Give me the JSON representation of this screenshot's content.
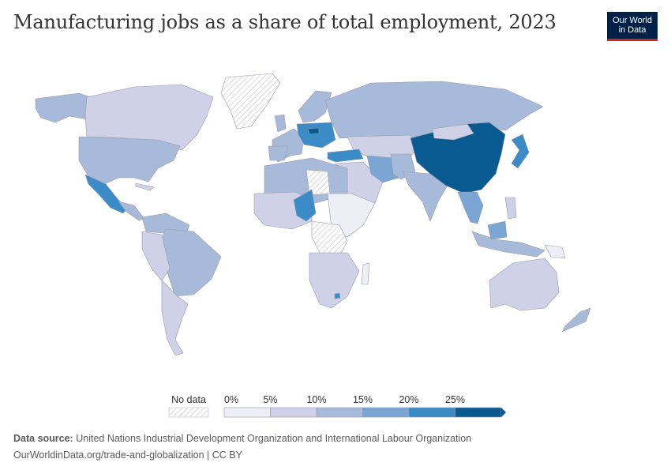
{
  "title": "Manufacturing jobs as a share of total employment, 2023",
  "logo": {
    "line1": "Our World",
    "line2": "in Data"
  },
  "legend": {
    "no_data_label": "No data",
    "bins": [
      {
        "label": "0%",
        "color": "#eeeef7"
      },
      {
        "label": "5%",
        "color": "#cfd1e8"
      },
      {
        "label": "10%",
        "color": "#a7bad9"
      },
      {
        "label": "15%",
        "color": "#7ba6d3"
      },
      {
        "label": "20%",
        "color": "#3b8cc6"
      },
      {
        "label": "25%",
        "color": "#0a5a92"
      }
    ]
  },
  "footer": {
    "source_label": "Data source:",
    "source_text": "United Nations Industrial Development Organization and International Labour Organization",
    "url": "OurWorldinData.org/trade-and-globalization | CC BY"
  },
  "colors": {
    "c0": "#eeeef7",
    "c5": "#cfd1e8",
    "c10": "#a7bad9",
    "c15": "#7ba6d3",
    "c20": "#3b8cc6",
    "c25": "#0a5a92",
    "border": "#9a9aa8",
    "nodata_stroke": "#c8c8c8"
  },
  "regions": [
    {
      "name": "Canada",
      "bin": "c5"
    },
    {
      "name": "United States",
      "bin": "c10"
    },
    {
      "name": "Alaska",
      "bin": "c10"
    },
    {
      "name": "Mexico",
      "bin": "c20"
    },
    {
      "name": "Greenland",
      "bin": "nodata"
    },
    {
      "name": "Brazil",
      "bin": "c10"
    },
    {
      "name": "Argentina",
      "bin": "c5"
    },
    {
      "name": "Russia",
      "bin": "c10"
    },
    {
      "name": "China",
      "bin": "c25"
    },
    {
      "name": "India",
      "bin": "c10"
    },
    {
      "name": "Turkey",
      "bin": "c20"
    },
    {
      "name": "Nigeria",
      "bin": "c20"
    },
    {
      "name": "Australia",
      "bin": "c5"
    },
    {
      "name": "Japan",
      "bin": "c15"
    }
  ]
}
